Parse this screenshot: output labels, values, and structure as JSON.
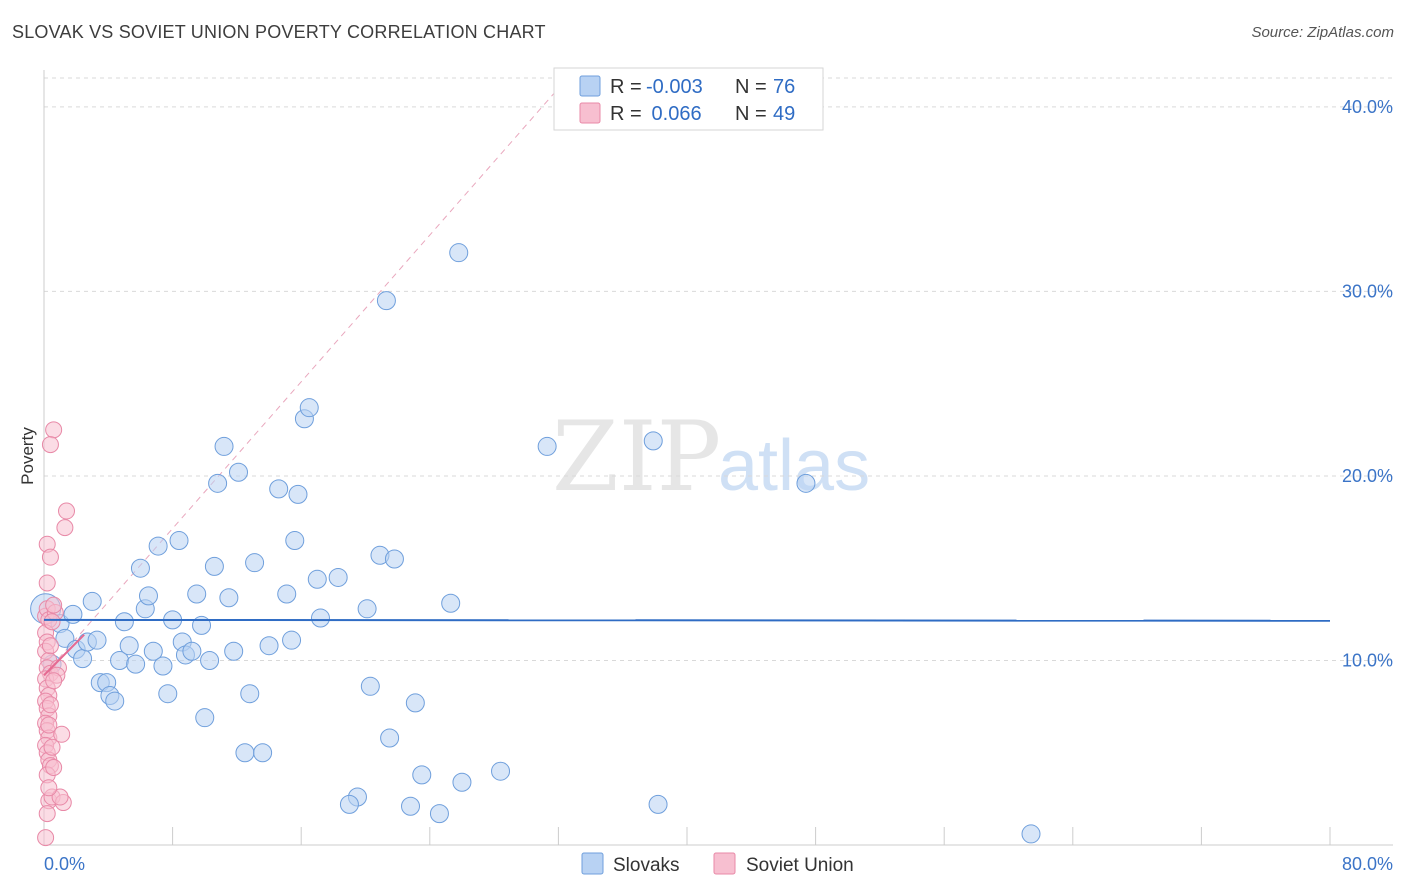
{
  "title": "SLOVAK VS SOVIET UNION POVERTY CORRELATION CHART",
  "source": "Source: ZipAtlas.com",
  "watermark": {
    "zip": "ZIP",
    "atlas": "atlas"
  },
  "colors": {
    "slovak_fill": "#b8d2f3",
    "slovak_stroke": "#6f9fdc",
    "slovak_line": "#2f6cc4",
    "soviet_fill": "#f7bfd0",
    "soviet_stroke": "#e889a7",
    "soviet_line": "#e56a92",
    "grid": "#d9d9d9",
    "axis_label": "#3b74c7"
  },
  "legend": {
    "rows": [
      {
        "r_label": "R =",
        "r_value": "-0.003",
        "n_label": "N =",
        "n_value": "76"
      },
      {
        "r_label": "R =",
        "r_value": " 0.066",
        "n_label": "N =",
        "n_value": "49"
      }
    ]
  },
  "bottom_legend": [
    "Slovaks",
    "Soviet Union"
  ],
  "chart_data": {
    "type": "scatter",
    "xlabel": "",
    "ylabel": "Poverty",
    "xlim": [
      0,
      80
    ],
    "ylim": [
      0,
      42
    ],
    "x_tick_labels": [
      "0.0%",
      "80.0%"
    ],
    "y_ticks": [
      10,
      20,
      30,
      40
    ],
    "y_tick_labels": [
      "10.0%",
      "20.0%",
      "30.0%",
      "40.0%"
    ],
    "grid": true,
    "legend_position": "top-center",
    "series": [
      {
        "name": "Slovaks",
        "R": -0.003,
        "N": 76,
        "trend": {
          "x0": 0,
          "y0": 12.2,
          "x1": 80,
          "y1": 12.15
        },
        "points": [
          [
            0.1,
            12.8
          ],
          [
            1.0,
            12.0
          ],
          [
            1.3,
            11.2
          ],
          [
            1.8,
            12.5
          ],
          [
            2.0,
            10.6
          ],
          [
            2.4,
            10.1
          ],
          [
            2.7,
            11.0
          ],
          [
            3.0,
            13.2
          ],
          [
            3.3,
            11.1
          ],
          [
            3.5,
            8.8
          ],
          [
            3.9,
            8.8
          ],
          [
            4.1,
            8.1
          ],
          [
            4.4,
            7.8
          ],
          [
            4.7,
            10.0
          ],
          [
            5.0,
            12.1
          ],
          [
            5.3,
            10.8
          ],
          [
            5.7,
            9.8
          ],
          [
            6.0,
            15.0
          ],
          [
            6.3,
            12.8
          ],
          [
            6.5,
            13.5
          ],
          [
            6.8,
            10.5
          ],
          [
            7.1,
            16.2
          ],
          [
            7.4,
            9.7
          ],
          [
            7.7,
            8.2
          ],
          [
            8.0,
            12.2
          ],
          [
            8.4,
            16.5
          ],
          [
            8.6,
            11.0
          ],
          [
            8.8,
            10.3
          ],
          [
            9.2,
            10.5
          ],
          [
            9.5,
            13.6
          ],
          [
            9.8,
            11.9
          ],
          [
            10.0,
            6.9
          ],
          [
            10.3,
            10.0
          ],
          [
            10.6,
            15.1
          ],
          [
            10.8,
            19.6
          ],
          [
            11.2,
            21.6
          ],
          [
            11.5,
            13.4
          ],
          [
            11.8,
            10.5
          ],
          [
            12.1,
            20.2
          ],
          [
            12.5,
            5.0
          ],
          [
            12.8,
            8.2
          ],
          [
            13.1,
            15.3
          ],
          [
            13.6,
            5.0
          ],
          [
            14.0,
            10.8
          ],
          [
            14.6,
            19.3
          ],
          [
            15.1,
            13.6
          ],
          [
            15.4,
            11.1
          ],
          [
            15.6,
            16.5
          ],
          [
            15.8,
            19.0
          ],
          [
            16.2,
            23.1
          ],
          [
            16.5,
            23.7
          ],
          [
            17.0,
            14.4
          ],
          [
            17.2,
            12.3
          ],
          [
            18.3,
            14.5
          ],
          [
            19.5,
            2.6
          ],
          [
            20.1,
            12.8
          ],
          [
            20.3,
            8.6
          ],
          [
            20.9,
            15.7
          ],
          [
            21.3,
            29.5
          ],
          [
            21.5,
            5.8
          ],
          [
            21.8,
            15.5
          ],
          [
            22.8,
            2.1
          ],
          [
            23.1,
            7.7
          ],
          [
            23.5,
            3.8
          ],
          [
            24.6,
            1.7
          ],
          [
            25.3,
            13.1
          ],
          [
            25.8,
            32.1
          ],
          [
            26.0,
            3.4
          ],
          [
            28.4,
            4.0
          ],
          [
            31.3,
            21.6
          ],
          [
            37.9,
            21.9
          ],
          [
            38.2,
            2.2
          ],
          [
            47.4,
            19.6
          ],
          [
            61.4,
            0.6
          ],
          [
            0.5,
            9.8
          ],
          [
            19.0,
            2.2
          ]
        ]
      },
      {
        "name": "Soviet Union",
        "R": 0.066,
        "N": 49,
        "trend": {
          "x0": 0,
          "y0": 9.2,
          "x1": 2.5,
          "y1": 11.4
        },
        "points": [
          [
            0.1,
            12.4
          ],
          [
            0.2,
            12.8
          ],
          [
            0.3,
            12.2
          ],
          [
            0.1,
            11.5
          ],
          [
            0.2,
            11.0
          ],
          [
            0.1,
            10.5
          ],
          [
            0.3,
            10.0
          ],
          [
            0.2,
            9.6
          ],
          [
            0.4,
            9.3
          ],
          [
            0.1,
            9.0
          ],
          [
            0.2,
            8.5
          ],
          [
            0.3,
            8.1
          ],
          [
            0.1,
            7.8
          ],
          [
            0.2,
            7.4
          ],
          [
            0.3,
            7.0
          ],
          [
            0.1,
            6.6
          ],
          [
            0.2,
            6.2
          ],
          [
            0.3,
            5.8
          ],
          [
            0.1,
            5.4
          ],
          [
            0.2,
            5.0
          ],
          [
            0.3,
            4.6
          ],
          [
            0.4,
            4.3
          ],
          [
            0.2,
            3.8
          ],
          [
            0.3,
            2.4
          ],
          [
            0.5,
            2.6
          ],
          [
            0.2,
            1.7
          ],
          [
            0.1,
            0.4
          ],
          [
            0.6,
            22.5
          ],
          [
            0.4,
            21.7
          ],
          [
            1.4,
            18.1
          ],
          [
            1.3,
            17.2
          ],
          [
            0.2,
            16.3
          ],
          [
            0.4,
            15.6
          ],
          [
            0.7,
            12.6
          ],
          [
            0.9,
            9.6
          ],
          [
            0.8,
            9.2
          ],
          [
            1.1,
            6.0
          ],
          [
            0.6,
            4.2
          ],
          [
            1.2,
            2.3
          ],
          [
            1.0,
            2.6
          ],
          [
            0.5,
            12.1
          ],
          [
            0.4,
            10.8
          ],
          [
            0.3,
            6.5
          ],
          [
            0.5,
            5.3
          ],
          [
            0.4,
            7.6
          ],
          [
            0.6,
            8.9
          ],
          [
            0.3,
            3.1
          ],
          [
            0.6,
            13.0
          ],
          [
            0.2,
            14.2
          ]
        ]
      }
    ],
    "diagonal_reference": {
      "x0": 0,
      "y0": 9.2,
      "x1": 33,
      "y1": 42
    }
  }
}
